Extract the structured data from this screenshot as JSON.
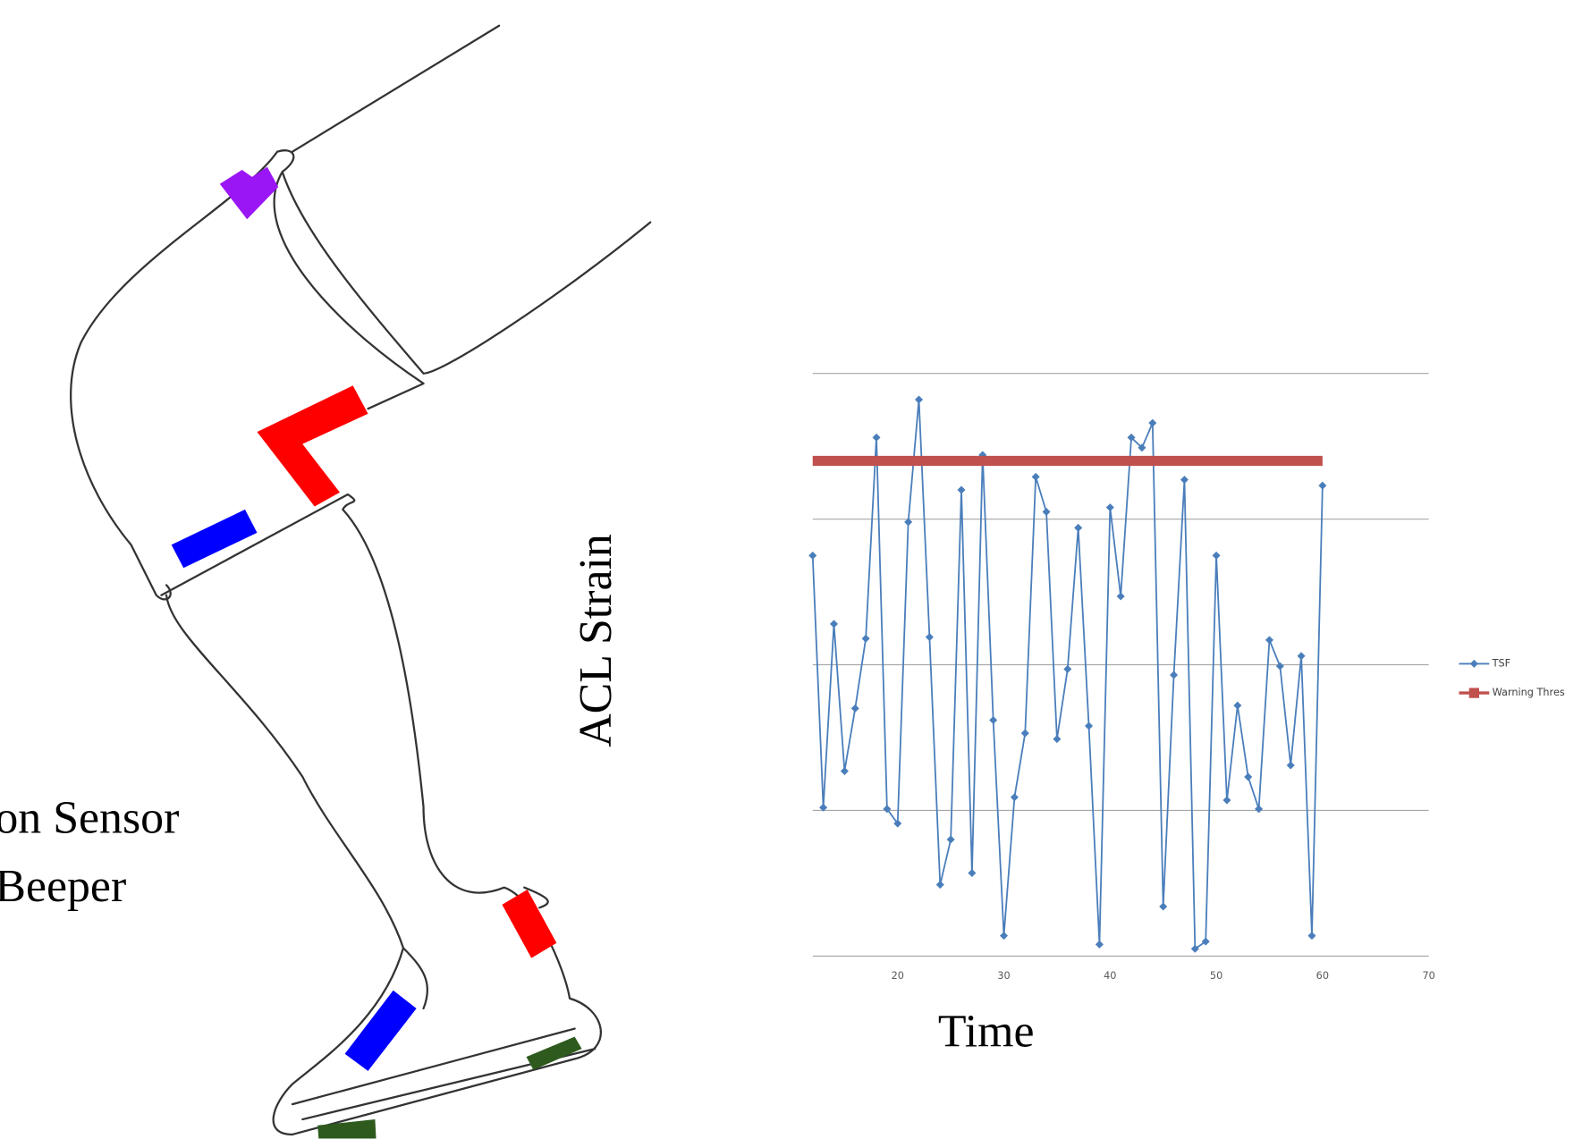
{
  "figure": {
    "labels": [
      "on Sensor",
      "Beeper"
    ]
  },
  "chart_data": {
    "type": "line",
    "xlabel": "Time",
    "ylabel": "ACL Strain",
    "xlim": [
      12,
      70
    ],
    "xticks": [
      20,
      30,
      40,
      50,
      60,
      70
    ],
    "ylim": [
      0,
      4
    ],
    "ygrid": [
      0,
      1,
      2,
      3,
      4
    ],
    "series": [
      {
        "name": "TSF",
        "color": "#4a7ebb",
        "x": [
          12,
          13,
          14,
          15,
          16,
          17,
          18,
          19,
          20,
          21,
          22,
          23,
          24,
          25,
          26,
          27,
          28,
          29,
          30,
          31,
          32,
          33,
          34,
          35,
          36,
          37,
          38,
          39,
          40,
          41,
          42,
          43,
          44,
          45,
          46,
          47,
          48,
          49,
          50,
          51,
          52,
          53,
          54,
          55,
          56,
          57,
          58,
          59,
          60
        ],
        "values": [
          2.75,
          1.02,
          2.28,
          1.27,
          1.7,
          2.18,
          3.56,
          1.01,
          0.91,
          2.98,
          3.82,
          2.19,
          0.49,
          0.8,
          3.2,
          0.57,
          3.44,
          1.62,
          0.14,
          1.09,
          1.53,
          3.29,
          3.05,
          1.49,
          1.97,
          2.94,
          1.58,
          0.08,
          3.08,
          2.47,
          3.56,
          3.49,
          3.66,
          0.34,
          1.93,
          3.27,
          0.05,
          0.1,
          2.75,
          1.07,
          1.72,
          1.23,
          1.01,
          2.17,
          1.99,
          1.31,
          2.06,
          0.14,
          3.23
        ]
      },
      {
        "name": "Warning Thres",
        "color": "#c0504d",
        "x": [
          12,
          60
        ],
        "values": [
          3.4,
          3.4
        ]
      }
    ]
  }
}
